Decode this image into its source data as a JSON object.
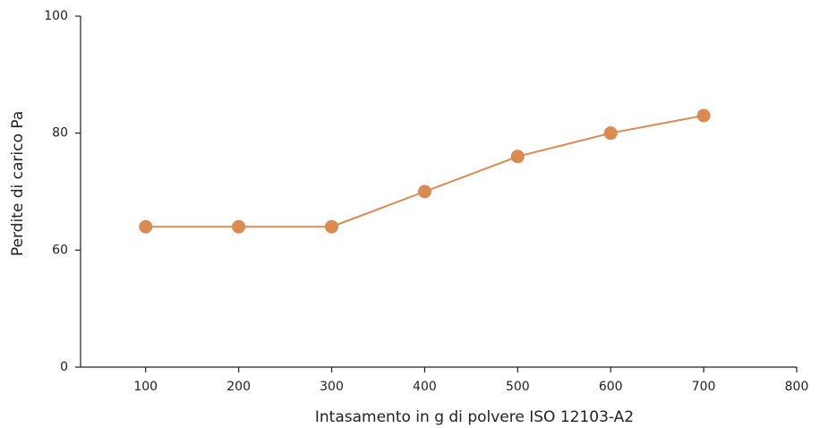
{
  "chart_data": {
    "type": "line",
    "x_label": "Intasamento in g di polvere ISO 12103-A2",
    "y_label": "Perdite di carico Pa",
    "x": [
      100,
      200,
      300,
      400,
      500,
      600,
      700
    ],
    "series": [
      {
        "color": "#d98b52",
        "values": [
          64,
          64,
          64,
          70,
          76,
          80,
          83
        ]
      }
    ],
    "xlim": [
      30,
      800
    ],
    "xticks": [
      100,
      200,
      300,
      400,
      500,
      600,
      700,
      800
    ],
    "ylim": [
      0,
      100
    ],
    "yticks": [
      0,
      60,
      80,
      100
    ],
    "yscale": "tick-spaced",
    "grid": false
  }
}
